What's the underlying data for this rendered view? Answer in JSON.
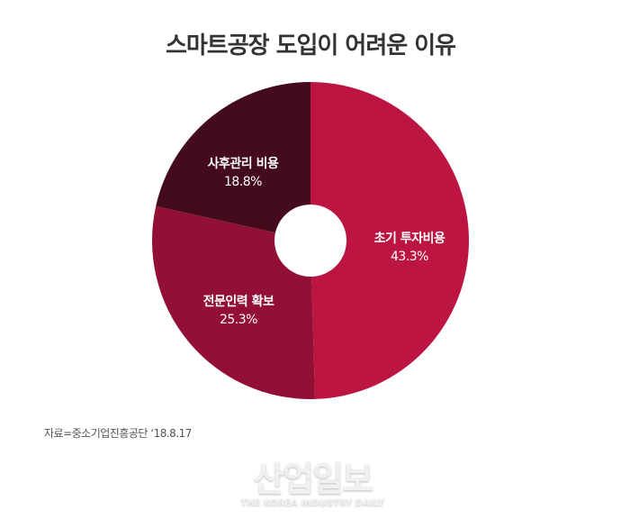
{
  "title": "스마트공장 도입이 어려운 이유",
  "source": "자료=중소기업진흥공단 ‘18.8.17",
  "watermark": {
    "korean": "산업일보",
    "english": "THE KOREA INDUSTRY DAILY"
  },
  "slices": [
    {
      "label": "초기 투자비용",
      "value": "43.3%",
      "color": "#bc1542"
    },
    {
      "label": "전문인력 확보",
      "value": "25.3%",
      "color": "#920f35"
    },
    {
      "label": "사후관리 비용",
      "value": "18.8%",
      "color": "#430b1b"
    }
  ],
  "chart_data": {
    "type": "pie",
    "title": "스마트공장 도입이 어려운 이유",
    "categories": [
      "초기 투자비용",
      "전문인력 확보",
      "사후관리 비용"
    ],
    "values": [
      43.3,
      25.3,
      18.8
    ],
    "unit": "%",
    "donut": true,
    "start_angle": "12 o'clock, clockwise",
    "colors": [
      "#bc1542",
      "#920f35",
      "#430b1b"
    ],
    "source": "자료=중소기업진흥공단 ‘18.8.17"
  }
}
